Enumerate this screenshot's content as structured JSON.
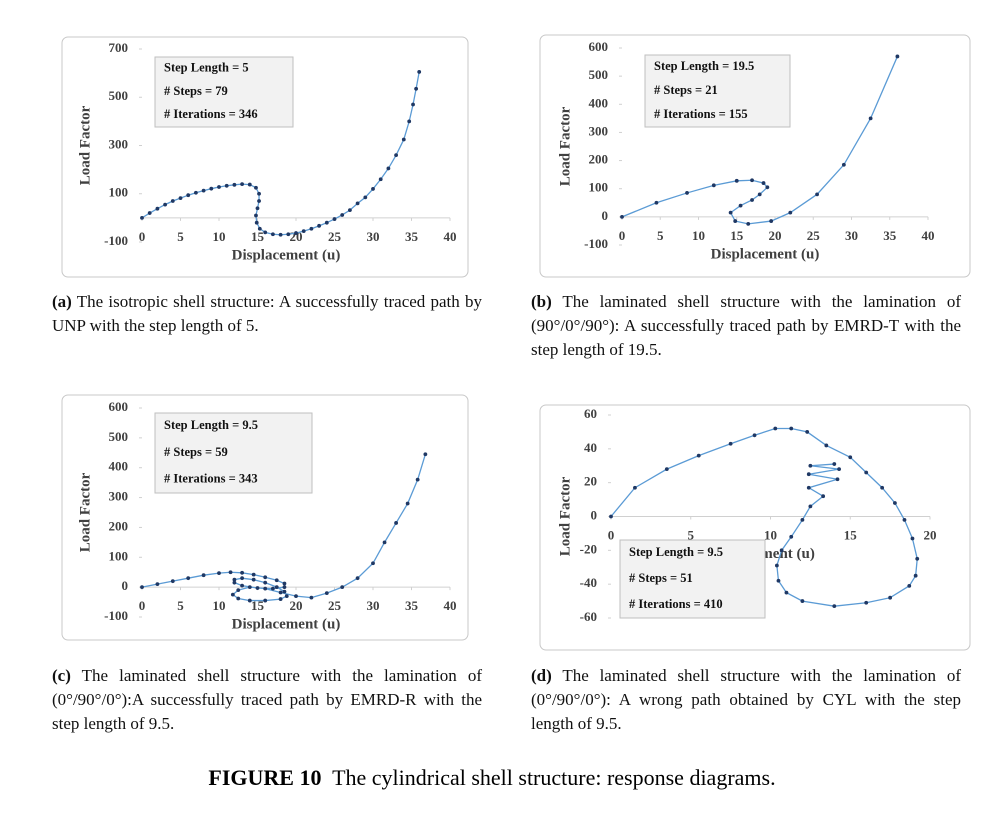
{
  "chart_data": [
    {
      "type": "line",
      "x_label": "Displacement (u)",
      "y_label": "Load Factor",
      "color": "#5b9bd5",
      "marker_color": "#1f3864",
      "annotations": [
        "Step Length = 5",
        "# Steps = 79",
        "# Iterations = 346"
      ],
      "xlim": [
        0,
        40
      ],
      "xticks": [
        0,
        5,
        10,
        15,
        20,
        25,
        30,
        35,
        40
      ],
      "ylim": [
        -100,
        700
      ],
      "yticks": [
        -100,
        100,
        300,
        500,
        700
      ],
      "x": [
        0,
        1,
        2,
        3,
        4,
        5,
        6,
        7,
        8,
        9,
        10,
        11,
        12,
        13,
        14,
        14.8,
        15.2,
        15.2,
        15,
        14.8,
        14.9,
        15.3,
        16,
        17,
        18,
        19,
        20,
        21,
        22,
        23,
        24,
        25,
        26,
        27,
        28,
        29,
        30,
        31,
        32,
        33,
        34,
        34.7,
        35.2,
        35.6,
        36
      ],
      "values": [
        0,
        20,
        38,
        55,
        70,
        82,
        94,
        104,
        113,
        121,
        128,
        133,
        137,
        140,
        138,
        125,
        100,
        70,
        40,
        10,
        -20,
        -45,
        -60,
        -68,
        -70,
        -68,
        -63,
        -55,
        -45,
        -33,
        -20,
        -5,
        12,
        32,
        60,
        85,
        120,
        160,
        205,
        260,
        325,
        400,
        470,
        535,
        605
      ],
      "caption_label": "(a)",
      "caption": "The isotropic shell structure: A successfully traced path by UNP with the step length of 5."
    },
    {
      "type": "line",
      "x_label": "Displacement (u)",
      "y_label": "Load Factor",
      "color": "#5b9bd5",
      "marker_color": "#1f3864",
      "annotations": [
        "Step Length = 19.5",
        "# Steps = 21",
        "# Iterations = 155"
      ],
      "xlim": [
        0,
        40
      ],
      "xticks": [
        0,
        5,
        10,
        15,
        20,
        25,
        30,
        35,
        40
      ],
      "ylim": [
        -100,
        600
      ],
      "yticks": [
        -100,
        0,
        100,
        200,
        300,
        400,
        500,
        600
      ],
      "x": [
        0,
        4.5,
        8.5,
        12,
        15,
        17,
        18.5,
        19,
        18,
        17,
        15.5,
        14.2,
        14.8,
        16.5,
        19.5,
        22,
        25.5,
        29,
        32.5,
        36
      ],
      "values": [
        0,
        50,
        85,
        112,
        128,
        130,
        120,
        105,
        80,
        60,
        40,
        15,
        -15,
        -25,
        -15,
        15,
        80,
        185,
        350,
        570
      ],
      "caption_label": "(b)",
      "caption": "The laminated shell structure with the lamination of (90°/0°/90°): A successfully traced path by EMRD-T with the step length of 19.5."
    },
    {
      "type": "line",
      "x_label": "Displacement (u)",
      "y_label": "Load Factor",
      "color": "#5b9bd5",
      "marker_color": "#1f3864",
      "annotations": [
        "Step Length = 9.5",
        "# Steps = 59",
        "# Iterations = 343"
      ],
      "xlim": [
        0,
        40
      ],
      "xticks": [
        0,
        5,
        10,
        15,
        20,
        25,
        30,
        35,
        40
      ],
      "ylim": [
        -100,
        600
      ],
      "yticks": [
        -100,
        0,
        100,
        200,
        300,
        400,
        500,
        600
      ],
      "x": [
        0,
        2,
        4,
        6,
        8,
        10,
        11.5,
        13,
        14.5,
        16,
        17.5,
        18.5,
        18.5,
        17,
        15,
        13,
        12,
        12,
        13,
        14.5,
        16,
        17.5,
        18.5,
        18.8,
        18,
        16,
        14,
        12.5,
        11.8,
        12.5,
        14,
        16,
        18,
        20,
        22,
        24,
        26,
        28,
        30,
        31.5,
        33,
        34.5,
        35.8,
        36.8
      ],
      "values": [
        0,
        10,
        20,
        30,
        40,
        47,
        50,
        48,
        42,
        33,
        23,
        12,
        0,
        -5,
        -3,
        5,
        15,
        25,
        30,
        25,
        15,
        0,
        -15,
        -30,
        -40,
        -45,
        -45,
        -38,
        -25,
        -10,
        0,
        -5,
        -18,
        -30,
        -35,
        -20,
        0,
        30,
        80,
        150,
        215,
        280,
        360,
        445
      ],
      "caption_label": "(c)",
      "caption": "The laminated shell structure with the lamination of (0°/90°/0°):A successfully traced path by EMRD-R with the step length of 9.5."
    },
    {
      "type": "line",
      "x_label": "Displacement (u)",
      "y_label": "Load Factor",
      "color": "#5b9bd5",
      "marker_color": "#1f3864",
      "annotations": [
        "Step Length = 9.5",
        "# Steps = 51",
        "# Iterations = 410"
      ],
      "xlim": [
        0,
        20
      ],
      "xticks": [
        0,
        5,
        10,
        15,
        20
      ],
      "ylim": [
        -60,
        60
      ],
      "yticks": [
        -60,
        -40,
        -20,
        0,
        20,
        40,
        60
      ],
      "x": [
        0,
        1.5,
        3.5,
        5.5,
        7.5,
        9,
        10.3,
        11.3,
        12.3,
        13.5,
        15,
        16,
        17,
        17.8,
        18.4,
        18.9,
        19.2,
        19.1,
        18.7,
        17.5,
        16,
        14,
        12,
        11,
        10.5,
        10.4,
        10.7,
        11.3,
        12,
        12.5,
        13.3,
        12.4,
        14.2,
        12.4,
        14.3,
        12.5,
        14
      ],
      "values": [
        0,
        17,
        28,
        36,
        43,
        48,
        52,
        52,
        50,
        42,
        35,
        26,
        17,
        8,
        -2,
        -13,
        -25,
        -35,
        -41,
        -48,
        -51,
        -53,
        -50,
        -45,
        -38,
        -29,
        -20,
        -12,
        -2,
        6,
        12,
        17,
        22,
        25,
        28,
        30,
        31
      ],
      "caption_label": "(d)",
      "caption": "The laminated shell structure with the lamination of (0°/90°/0°): A wrong path obtained by CYL with the step length of 9.5."
    }
  ],
  "figure_caption": {
    "label": "FIGURE 10",
    "text": "The cylindrical shell structure: response diagrams."
  }
}
